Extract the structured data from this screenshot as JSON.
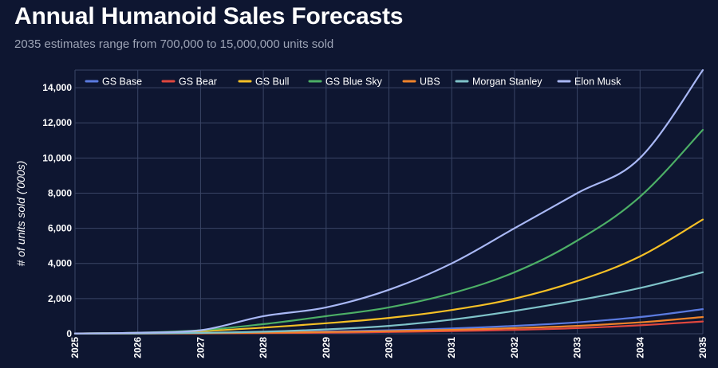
{
  "header": {
    "title": "Annual Humanoid Sales Forecasts",
    "subtitle": "2035 estimates range from 700,000 to 15,000,000 units sold"
  },
  "colors": {
    "background": "#0e1631",
    "grid": "#3a4566"
  },
  "chart_data": {
    "type": "line",
    "title": "Annual Humanoid Sales Forecasts",
    "subtitle": "2035 estimates range from 700,000 to 15,000,000 units sold",
    "xlabel": "",
    "ylabel": "# of units sold ('000s)",
    "x": [
      2025,
      2026,
      2027,
      2028,
      2029,
      2030,
      2031,
      2032,
      2033,
      2034,
      2035
    ],
    "x_tick_labels": [
      "2025",
      "2026",
      "2027",
      "2028",
      "2029",
      "2030",
      "2031",
      "2032",
      "2033",
      "2034",
      "2035"
    ],
    "ylim": [
      0,
      14000
    ],
    "y_ticks": [
      0,
      2000,
      4000,
      6000,
      8000,
      10000,
      12000,
      14000
    ],
    "y_tick_labels": [
      "0",
      "2,000",
      "4,000",
      "6,000",
      "8,000",
      "10,000",
      "12,000",
      "14,000"
    ],
    "grid": true,
    "legend_position": "top",
    "series": [
      {
        "name": "GS Base",
        "color": "#5b7be0",
        "values": [
          10,
          20,
          50,
          80,
          130,
          200,
          300,
          450,
          650,
          950,
          1400
        ]
      },
      {
        "name": "GS Bear",
        "color": "#e0473e",
        "values": [
          5,
          10,
          20,
          40,
          60,
          100,
          150,
          220,
          320,
          480,
          700
        ]
      },
      {
        "name": "GS Bull",
        "color": "#f6c026",
        "values": [
          20,
          50,
          150,
          350,
          600,
          900,
          1350,
          2000,
          3000,
          4400,
          6500
        ]
      },
      {
        "name": "GS Blue Sky",
        "color": "#4caf66",
        "values": [
          20,
          60,
          200,
          550,
          1000,
          1500,
          2300,
          3500,
          5300,
          7800,
          11600
        ]
      },
      {
        "name": "UBS",
        "color": "#f0832a",
        "values": [
          5,
          15,
          30,
          60,
          100,
          150,
          220,
          320,
          450,
          650,
          950
        ]
      },
      {
        "name": "Morgan Stanley",
        "color": "#7fc3c9",
        "values": [
          10,
          20,
          50,
          120,
          250,
          450,
          800,
          1300,
          1900,
          2600,
          3500
        ]
      },
      {
        "name": "Elon Musk",
        "color": "#a9b8f5",
        "values": [
          20,
          60,
          200,
          1000,
          1500,
          2500,
          4000,
          6000,
          8000,
          10000,
          15000
        ]
      }
    ]
  }
}
